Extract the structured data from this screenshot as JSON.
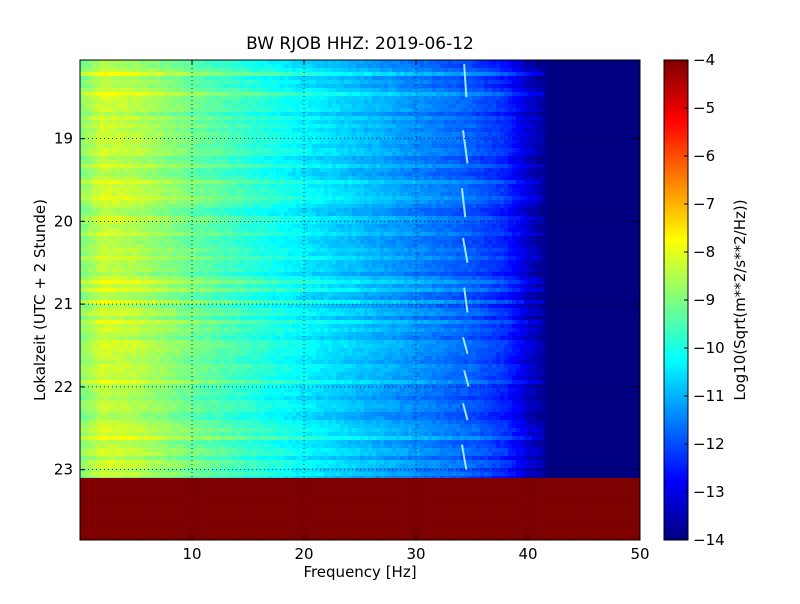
{
  "chart_data": {
    "type": "heatmap",
    "title": "BW RJOB HHZ: 2019-06-12",
    "xlabel": "Frequency [Hz]",
    "ylabel": "Lokalzeit (UTC + 2 Stunde)",
    "xlim": [
      0,
      50
    ],
    "ylim": [
      18.05,
      23.85
    ],
    "y_inverted": true,
    "x_ticks": [
      10,
      20,
      30,
      40,
      50
    ],
    "y_ticks": [
      19,
      20,
      21,
      22,
      23
    ],
    "x_tick_labels": [
      "10",
      "20",
      "30",
      "40",
      "50"
    ],
    "y_tick_labels": [
      "19",
      "20",
      "21",
      "22",
      "23"
    ],
    "grid": true,
    "colormap": "jet",
    "colorbar": {
      "label": "Log10(Sqrt(m**2/s**2/Hz))",
      "range": [
        -14,
        -4
      ],
      "ticks": [
        -4,
        -5,
        -6,
        -7,
        -8,
        -9,
        -10,
        -11,
        -12,
        -13,
        -14
      ],
      "tick_labels": [
        "−4",
        "−5",
        "−6",
        "−7",
        "−8",
        "−9",
        "−10",
        "−11",
        "−12",
        "−13",
        "−14"
      ]
    },
    "data_end_hour": 23.1,
    "fill_value_after_end": -4,
    "spectral_profile": {
      "frequency_hz": [
        0,
        2,
        5,
        10,
        15,
        20,
        25,
        30,
        35,
        38,
        40,
        42,
        45,
        50
      ],
      "log_amplitude": [
        -9.0,
        -8.3,
        -8.5,
        -9.2,
        -9.8,
        -10.4,
        -10.9,
        -11.4,
        -11.9,
        -12.4,
        -13.2,
        -14,
        -14,
        -14
      ]
    },
    "line_feature": {
      "frequency_hz": [
        34.3,
        34.5,
        34.2,
        34.6,
        34.1,
        34.4,
        34.2,
        34.6,
        34.3,
        34.6,
        34.2,
        34.6,
        34.3,
        34.7,
        34.2,
        34.6,
        34.1,
        34.5
      ],
      "hour": [
        18.1,
        18.5,
        18.9,
        19.3,
        19.6,
        19.95,
        20.2,
        20.5,
        20.8,
        21.1,
        21.4,
        21.6,
        21.8,
        22.0,
        22.2,
        22.4,
        22.7,
        23.0
      ]
    }
  }
}
